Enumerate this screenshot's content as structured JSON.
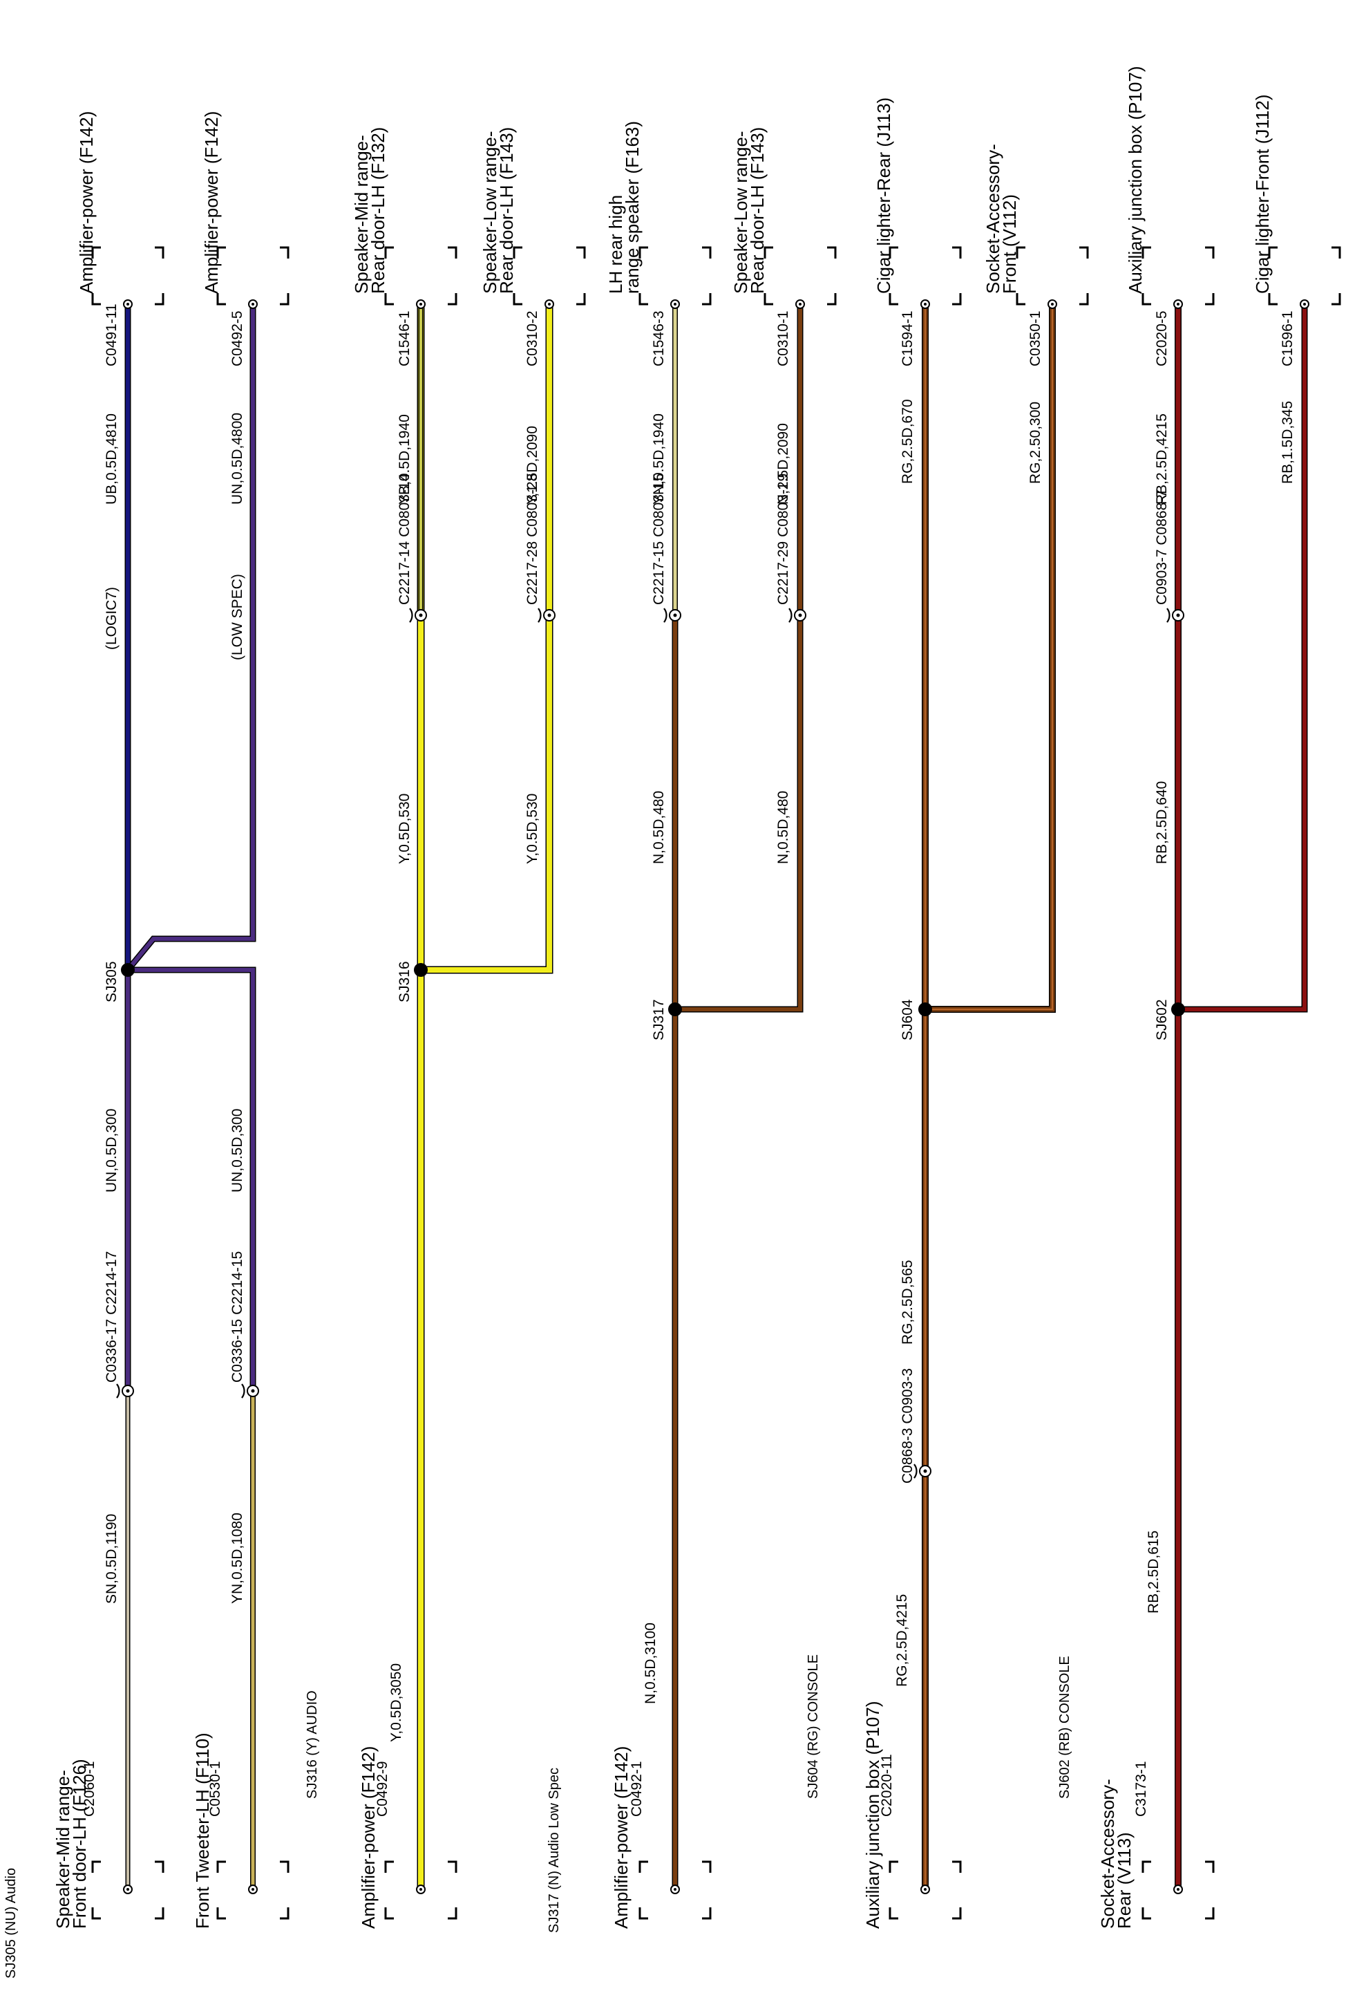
{
  "colors": {
    "UN": "#4b2c80",
    "UB": "#16167e",
    "Y": "#f2ee1c",
    "N": "#7a3e10",
    "RG": "#7a3e10",
    "RB": "#8b1010",
    "SN": "#c8bfa8",
    "YN": "#c9b25a",
    "YB": "#c8cc50",
    "YN_top": "#ddd690",
    "RG_mid": "#b86428"
  },
  "sections": [
    "SJ305 (NU) Audio",
    "SJ316 (Y) AUDIO",
    "SJ317 (N) Audio Low Spec",
    "SJ604 (RG)  CONSOLE",
    "SJ602 (RB)  CONSOLE"
  ],
  "bottom_connectors": {
    "c1": [
      "Speaker-Mid range-",
      "Front door-LH (F126)",
      "C2060-1",
      "SN,0.5D,1190"
    ],
    "c2": [
      "Front Tweeter-LH (F110)",
      "C0530-1",
      "YN,0.5D,1080"
    ],
    "c3": [
      "Amplifier-power (F142)",
      "C0492-9",
      "Y,0.5D,3050"
    ],
    "c4": [
      "Amplifier-power (F142)",
      "C0492-1",
      "N,0.5D,3100"
    ],
    "c5": [
      "Auxiliary junction box (P107)",
      "C2020-11",
      "RG,2.5D,4215"
    ],
    "c6": [
      "Socket-Accessory-",
      "Rear (V113)",
      "C3173-1",
      "RB,2.5D,615"
    ]
  },
  "inline_connectors": {
    "i1": "C0336-17 C2214-17",
    "i2": "C0336-15 C2214-15",
    "i3": "C0868-3 C0903-3",
    "i4": "C2217-14 C0803-14",
    "i5": "C2217-28 C0803-28",
    "i6": "C2217-15 C0803-15",
    "i7": "C2217-29 C0803-29",
    "i8": "C0903-7 C0868-7"
  },
  "wire_labels": {
    "w1": "UN,0.5D,300",
    "w2": "UN,0.5D,300",
    "w3": "RG,2.5D,565",
    "w4": "Y,0.5D,530",
    "w5": "Y,0.5D,530",
    "w6": "N,0.5D,480",
    "w7": "N,0.5D,480",
    "w8": "RB,2.5D,640"
  },
  "splices": {
    "s1": "SJ305",
    "s2": "SJ316",
    "s3": "SJ317",
    "s4": "SJ604",
    "s5": "SJ602"
  },
  "top_wire_labels": {
    "t1": "UB,0.5D,4810",
    "t2": "UN,0.5D,4800",
    "t3": "YB,0.5D,1940",
    "t4": "Y,1.5D,2090",
    "t5": "YN,0.5D,1940",
    "t6": "N,1.5D,2090",
    "t7": "RG,2.5D,670",
    "t8": "RG,2.50,300",
    "t9": "RB,2.5D,4215",
    "t10": "RB,1.5D,345"
  },
  "qualifiers": {
    "q1": "(LOGIC7)",
    "q2": "(LOW SPEC)"
  },
  "top_pins": {
    "p1": "C0491-11",
    "p2": "C0492-5",
    "p3": "C1546-1",
    "p4": "C0310-2",
    "p5": "C1546-3",
    "p6": "C0310-1",
    "p7": "C1594-1",
    "p8": "C0350-1",
    "p9": "C2020-5",
    "p10": "C1596-1"
  },
  "top_components": {
    "d1": [
      "Amplifier-power (F142)"
    ],
    "d2": [
      "Amplifier-power (F142)"
    ],
    "d3": [
      "Speaker-Mid range-",
      "Rear door-LH (F132)"
    ],
    "d4": [
      "Speaker-Low range-",
      "Rear door-LH (F143)"
    ],
    "d5": [
      "LH rear high",
      "range speaker (F163)"
    ],
    "d6": [
      "Speaker-Low range-",
      "Rear door-LH (F143)"
    ],
    "d7": [
      "Cigar lighter-Rear (J113)"
    ],
    "d8": [
      "Socket-Accessory-",
      "Front (V112)"
    ],
    "d9": [
      "Auxiliary junction box (P107)"
    ],
    "d10": [
      "Cigar lighter-Front (J112)"
    ]
  }
}
